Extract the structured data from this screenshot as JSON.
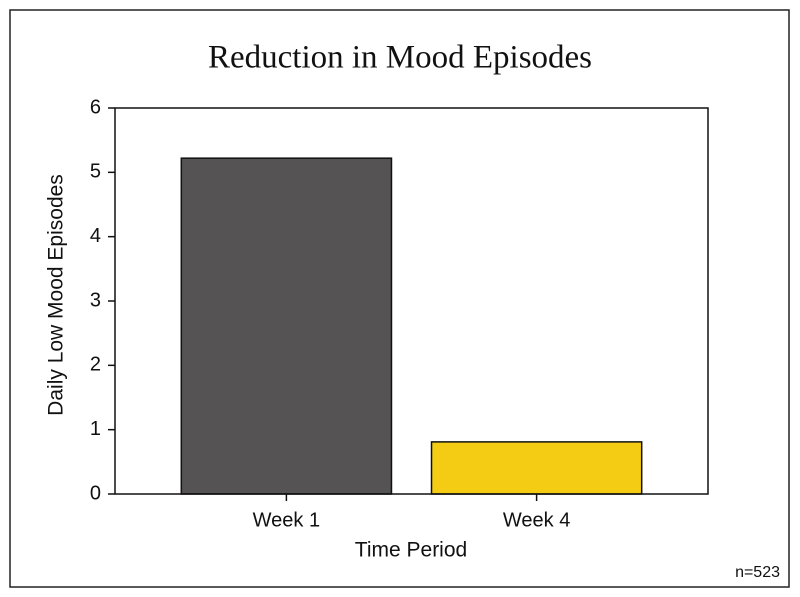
{
  "chart_data": {
    "type": "bar",
    "title": "Reduction in Mood Episodes",
    "x_label": "Time Period",
    "y_label": "Daily Low Mood Episodes",
    "categories": [
      "Week 1",
      "Week 4"
    ],
    "values": [
      5.22,
      0.81
    ],
    "colors": [
      "#555354",
      "#f5cc14"
    ],
    "ylim": [
      0,
      6
    ],
    "yticks": [
      0,
      1,
      2,
      3,
      4,
      5,
      6
    ],
    "grid": false,
    "annotation": "n=523"
  }
}
